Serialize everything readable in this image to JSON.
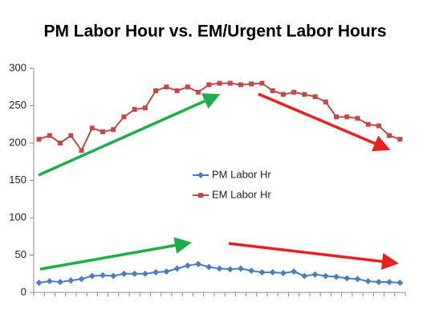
{
  "chart_data": {
    "type": "line",
    "title": "PM Labor Hour vs. EM/Urgent Labor Hours",
    "categories": [
      null,
      null,
      null,
      null,
      null,
      null,
      null,
      null,
      null,
      null,
      null,
      null,
      null,
      null,
      null,
      null,
      null,
      null,
      null,
      null,
      null,
      null,
      null,
      null,
      null,
      null,
      null,
      null,
      null,
      null,
      null,
      null,
      null,
      null,
      null
    ],
    "series": [
      {
        "name": "PM Labor Hr",
        "color": "#4a7ebb",
        "marker": "diamond",
        "values": [
          13,
          15,
          14,
          16,
          18,
          22,
          23,
          22,
          25,
          25,
          25,
          27,
          28,
          32,
          36,
          38,
          34,
          32,
          31,
          32,
          29,
          27,
          27,
          26,
          28,
          22,
          24,
          22,
          21,
          19,
          18,
          15,
          14,
          14,
          13
        ]
      },
      {
        "name": "EM Labor Hr",
        "color": "#be4b48",
        "marker": "square",
        "values": [
          205,
          210,
          200,
          210,
          190,
          220,
          215,
          218,
          235,
          245,
          247,
          270,
          275,
          270,
          275,
          268,
          278,
          280,
          280,
          278,
          279,
          280,
          270,
          265,
          268,
          265,
          262,
          255,
          235,
          235,
          233,
          225,
          223,
          210,
          205
        ]
      }
    ],
    "ylim": [
      0,
      300
    ],
    "yticks": [
      0,
      50,
      100,
      150,
      200,
      250,
      300
    ],
    "grid": false
  }
}
